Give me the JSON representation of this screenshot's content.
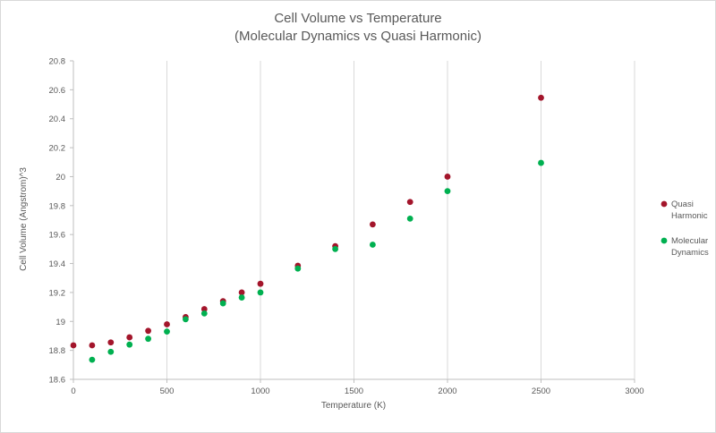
{
  "chart_data": {
    "type": "scatter",
    "title": "Cell Volume vs Temperature",
    "subtitle": "(Molecular Dynamics vs Quasi Harmonic)",
    "xlabel": "Temperature (K)",
    "ylabel": "Cell Volume (Angstrom)^3",
    "xlim": [
      0,
      3000
    ],
    "ylim": [
      18.6,
      20.8
    ],
    "xticks": [
      0,
      500,
      1000,
      1500,
      2000,
      2500,
      3000
    ],
    "yticks": [
      18.6,
      18.8,
      19,
      19.2,
      19.4,
      19.6,
      19.8,
      20,
      20.2,
      20.4,
      20.6,
      20.8
    ],
    "grid": "vertical",
    "legend_position": "right",
    "series": [
      {
        "name": "Quasi Harmonic",
        "color": "#a3152b",
        "x": [
          0,
          100,
          200,
          300,
          400,
          500,
          600,
          700,
          800,
          900,
          1000,
          1200,
          1400,
          1600,
          1800,
          2000,
          2500
        ],
        "y": [
          18.835,
          18.835,
          18.855,
          18.89,
          18.935,
          18.98,
          19.03,
          19.085,
          19.14,
          19.2,
          19.26,
          19.385,
          19.52,
          19.67,
          19.825,
          20.0,
          20.545
        ]
      },
      {
        "name": "Molecular Dynamics",
        "color": "#00b050",
        "x": [
          100,
          200,
          300,
          400,
          500,
          600,
          700,
          800,
          900,
          1000,
          1200,
          1400,
          1600,
          1800,
          2000,
          2500
        ],
        "y": [
          18.735,
          18.79,
          18.84,
          18.88,
          18.93,
          19.015,
          19.055,
          19.125,
          19.165,
          19.2,
          19.365,
          19.5,
          19.53,
          19.71,
          19.9,
          20.095
        ]
      }
    ]
  }
}
